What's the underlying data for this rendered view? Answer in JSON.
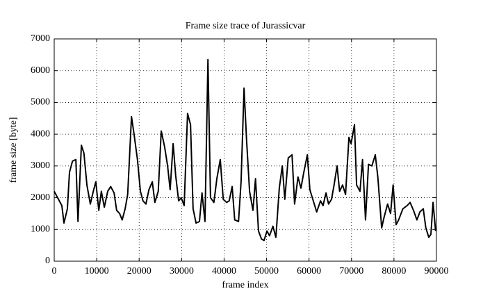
{
  "chart_data": {
    "type": "line",
    "title": "Frame size trace of Jurassicvar",
    "x_label": "frame index",
    "y_label": "frame size [byte]",
    "xlim": [
      0,
      90000
    ],
    "ylim": [
      0,
      7000
    ],
    "xticks": [
      0,
      10000,
      20000,
      30000,
      40000,
      50000,
      60000,
      70000,
      80000,
      90000
    ],
    "yticks": [
      0,
      1000,
      2000,
      3000,
      4000,
      5000,
      6000,
      7000
    ],
    "grid": true,
    "series": [
      {
        "color": "#000000",
        "x": [
          0,
          1000,
          1800,
          2300,
          3100,
          3600,
          4300,
          5100,
          5600,
          6400,
          7000,
          7700,
          8500,
          9200,
          9800,
          10500,
          11100,
          11800,
          12600,
          13300,
          14100,
          14700,
          15400,
          16000,
          16700,
          17300,
          18200,
          18800,
          19600,
          20300,
          20900,
          21600,
          22300,
          23100,
          23700,
          24500,
          25200,
          26000,
          26700,
          27300,
          28000,
          28600,
          29300,
          29900,
          30600,
          31400,
          32100,
          32700,
          33400,
          34200,
          34800,
          35500,
          36200,
          36800,
          37600,
          38300,
          39100,
          39800,
          40600,
          41200,
          41900,
          42500,
          43400,
          44000,
          44700,
          45300,
          46000,
          46800,
          47400,
          48100,
          48800,
          49400,
          50100,
          50700,
          51500,
          52200,
          53000,
          53700,
          54300,
          55100,
          56000,
          56600,
          57400,
          58100,
          58700,
          59600,
          60200,
          61000,
          61800,
          62700,
          63300,
          64000,
          64600,
          65300,
          65900,
          66600,
          67200,
          67900,
          68600,
          69400,
          69900,
          70700,
          71200,
          72000,
          72600,
          73300,
          74000,
          74800,
          75600,
          76200,
          77100,
          77700,
          78500,
          79200,
          79800,
          80500,
          81100,
          82100,
          83100,
          83800,
          84600,
          85400,
          86100,
          86900,
          87500,
          88200,
          88700,
          89200,
          89800
        ],
        "values": [
          2200,
          1950,
          1750,
          1200,
          1650,
          2800,
          3150,
          3200,
          1250,
          3650,
          3400,
          2400,
          1800,
          2200,
          2500,
          1600,
          2200,
          1700,
          2200,
          2350,
          2150,
          1600,
          1500,
          1300,
          1650,
          2100,
          4550,
          4000,
          3200,
          2200,
          1900,
          1800,
          2250,
          2500,
          1850,
          2200,
          4100,
          3600,
          3000,
          2250,
          3700,
          2700,
          1900,
          2000,
          1750,
          4650,
          4300,
          1650,
          1200,
          1250,
          2150,
          1250,
          6350,
          2000,
          1850,
          2600,
          3200,
          1950,
          1850,
          1900,
          2350,
          1300,
          1250,
          2500,
          5450,
          3800,
          2200,
          1600,
          2600,
          950,
          700,
          650,
          950,
          800,
          1100,
          750,
          2300,
          3000,
          1950,
          3250,
          3350,
          1800,
          2650,
          2300,
          2750,
          3350,
          2250,
          1900,
          1550,
          1900,
          1750,
          2150,
          1800,
          1950,
          2400,
          3000,
          2200,
          2400,
          2100,
          3900,
          3700,
          4300,
          2400,
          2200,
          3200,
          1300,
          3050,
          3000,
          3350,
          2650,
          1050,
          1400,
          1800,
          1500,
          2400,
          1150,
          1300,
          1650,
          1750,
          1850,
          1600,
          1300,
          1550,
          1650,
          1050,
          750,
          850,
          1850,
          950
        ]
      }
    ]
  }
}
